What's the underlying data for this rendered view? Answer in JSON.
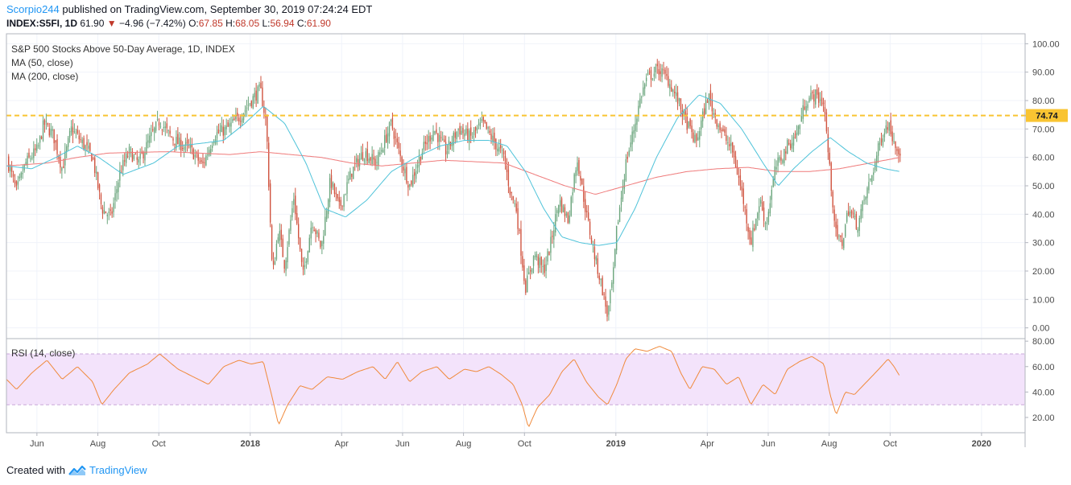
{
  "header": {
    "author": "Scorpio244",
    "published_text": " published on TradingView.com, September 30, 2019 07:24:24 EDT",
    "symbol": "INDEX:S5FI, 1D",
    "last": "61.90",
    "change": "−4.96 (−7.42%)",
    "o_label": "O:",
    "o_value": "67.85",
    "h_label": "H:",
    "h_value": "68.05",
    "l_label": "L:",
    "l_value": "56.94",
    "c_label": "C:",
    "c_value": "61.90"
  },
  "legend": {
    "title": "S&P 500 Stocks Above 50-Day Average, 1D, INDEX",
    "ma50": "MA (50, close)",
    "ma200": "MA (200, close)",
    "rsi": "RSI (14, close)"
  },
  "footer": {
    "created_with": "Created with",
    "brand": "TradingView"
  },
  "colors": {
    "up": "#6aa57c",
    "down": "#d0533f",
    "ma50": "#4fc3d9",
    "ma200": "#ef7a7a",
    "level": "#f9c432",
    "rsi": "#f08a3c",
    "rsi_band": "#f3e3fb"
  },
  "chart_data": {
    "type": "candlestick",
    "x_labels": [
      {
        "label": "Jun",
        "t": 0.17,
        "bold": false
      },
      {
        "label": "Aug",
        "t": 2.17,
        "bold": false
      },
      {
        "label": "Oct",
        "t": 4.17,
        "bold": false
      },
      {
        "label": "2018",
        "t": 7.17,
        "bold": true
      },
      {
        "label": "Apr",
        "t": 10.17,
        "bold": false
      },
      {
        "label": "Jun",
        "t": 12.17,
        "bold": false
      },
      {
        "label": "Aug",
        "t": 14.17,
        "bold": false
      },
      {
        "label": "Oct",
        "t": 16.17,
        "bold": false
      },
      {
        "label": "2019",
        "t": 19.17,
        "bold": true
      },
      {
        "label": "Apr",
        "t": 22.17,
        "bold": false
      },
      {
        "label": "Jun",
        "t": 24.17,
        "bold": false
      },
      {
        "label": "Aug",
        "t": 26.17,
        "bold": false
      },
      {
        "label": "Oct",
        "t": 28.17,
        "bold": false
      },
      {
        "label": "2020",
        "t": 31.17,
        "bold": true
      }
    ],
    "x_range": [
      -0.83,
      32.6
    ],
    "price": {
      "ylim": [
        -3.5,
        103.5
      ],
      "ticks": [
        "0.00",
        "10.00",
        "20.00",
        "30.00",
        "40.00",
        "50.00",
        "60.00",
        "70.00",
        "80.00",
        "90.00",
        "100.00"
      ],
      "level_value": 74.74,
      "level_label": "74.74",
      "close_anchors": [
        [
          -0.83,
          60
        ],
        [
          -0.5,
          48
        ],
        [
          -0.2,
          58
        ],
        [
          0.2,
          63
        ],
        [
          0.4,
          72
        ],
        [
          0.7,
          68
        ],
        [
          1.0,
          56
        ],
        [
          1.3,
          70
        ],
        [
          1.6,
          66
        ],
        [
          2.0,
          60
        ],
        [
          2.3,
          42
        ],
        [
          2.6,
          39
        ],
        [
          2.9,
          55
        ],
        [
          3.2,
          62
        ],
        [
          3.5,
          58
        ],
        [
          3.9,
          67
        ],
        [
          4.2,
          73
        ],
        [
          4.5,
          68
        ],
        [
          4.8,
          65
        ],
        [
          5.2,
          63
        ],
        [
          5.6,
          57
        ],
        [
          6.0,
          68
        ],
        [
          6.4,
          70
        ],
        [
          6.8,
          74
        ],
        [
          7.2,
          80
        ],
        [
          7.5,
          84
        ],
        [
          7.7,
          72
        ],
        [
          7.9,
          18
        ],
        [
          8.1,
          35
        ],
        [
          8.3,
          22
        ],
        [
          8.6,
          46
        ],
        [
          8.9,
          18
        ],
        [
          9.2,
          38
        ],
        [
          9.5,
          28
        ],
        [
          9.8,
          52
        ],
        [
          10.1,
          42
        ],
        [
          10.5,
          55
        ],
        [
          10.9,
          62
        ],
        [
          11.3,
          58
        ],
        [
          11.8,
          72
        ],
        [
          12.1,
          60
        ],
        [
          12.4,
          50
        ],
        [
          12.8,
          62
        ],
        [
          13.2,
          70
        ],
        [
          13.6,
          62
        ],
        [
          14.0,
          70
        ],
        [
          14.4,
          67
        ],
        [
          14.8,
          72
        ],
        [
          15.2,
          65
        ],
        [
          15.5,
          60
        ],
        [
          15.7,
          48
        ],
        [
          15.9,
          42
        ],
        [
          16.2,
          14
        ],
        [
          16.5,
          26
        ],
        [
          16.8,
          20
        ],
        [
          17.0,
          28
        ],
        [
          17.3,
          45
        ],
        [
          17.6,
          38
        ],
        [
          17.9,
          60
        ],
        [
          18.2,
          40
        ],
        [
          18.5,
          24
        ],
        [
          18.7,
          15
        ],
        [
          18.9,
          4
        ],
        [
          19.1,
          20
        ],
        [
          19.2,
          35
        ],
        [
          19.5,
          58
        ],
        [
          19.8,
          72
        ],
        [
          20.0,
          82
        ],
        [
          20.2,
          88
        ],
        [
          20.6,
          91
        ],
        [
          20.9,
          87
        ],
        [
          21.2,
          80
        ],
        [
          21.5,
          72
        ],
        [
          21.8,
          65
        ],
        [
          22.2,
          82
        ],
        [
          22.4,
          75
        ],
        [
          22.7,
          68
        ],
        [
          23.0,
          62
        ],
        [
          23.3,
          48
        ],
        [
          23.6,
          30
        ],
        [
          23.9,
          45
        ],
        [
          24.1,
          36
        ],
        [
          24.4,
          56
        ],
        [
          24.8,
          64
        ],
        [
          25.1,
          68
        ],
        [
          25.4,
          80
        ],
        [
          25.7,
          82
        ],
        [
          26.0,
          79
        ],
        [
          26.2,
          54
        ],
        [
          26.4,
          32
        ],
        [
          26.6,
          30
        ],
        [
          26.8,
          42
        ],
        [
          27.1,
          36
        ],
        [
          27.3,
          44
        ],
        [
          27.6,
          55
        ],
        [
          27.9,
          68
        ],
        [
          28.1,
          72
        ],
        [
          28.3,
          66
        ],
        [
          28.5,
          61.9
        ]
      ],
      "ma50_anchors": [
        [
          -0.83,
          57
        ],
        [
          0.0,
          56
        ],
        [
          0.8,
          60
        ],
        [
          1.5,
          64
        ],
        [
          2.2,
          60
        ],
        [
          3.0,
          54
        ],
        [
          4.0,
          58
        ],
        [
          4.8,
          64
        ],
        [
          5.6,
          65
        ],
        [
          6.3,
          66
        ],
        [
          7.0,
          72
        ],
        [
          7.6,
          78
        ],
        [
          8.3,
          72
        ],
        [
          9.0,
          58
        ],
        [
          9.6,
          42
        ],
        [
          10.3,
          39
        ],
        [
          11.0,
          45
        ],
        [
          11.8,
          55
        ],
        [
          12.6,
          60
        ],
        [
          13.4,
          64
        ],
        [
          14.2,
          66
        ],
        [
          15.0,
          66
        ],
        [
          15.6,
          64
        ],
        [
          16.2,
          55
        ],
        [
          16.8,
          42
        ],
        [
          17.4,
          32
        ],
        [
          18.0,
          30
        ],
        [
          18.6,
          29
        ],
        [
          19.2,
          30
        ],
        [
          19.8,
          42
        ],
        [
          20.5,
          60
        ],
        [
          21.2,
          74
        ],
        [
          21.9,
          82
        ],
        [
          22.6,
          79
        ],
        [
          23.3,
          70
        ],
        [
          24.0,
          58
        ],
        [
          24.5,
          50
        ],
        [
          25.0,
          56
        ],
        [
          25.6,
          62
        ],
        [
          26.2,
          67
        ],
        [
          26.8,
          62
        ],
        [
          27.4,
          58
        ],
        [
          28.0,
          56
        ],
        [
          28.5,
          55
        ]
      ],
      "ma200_anchors": [
        [
          -0.83,
          57
        ],
        [
          0.5,
          58
        ],
        [
          1.5,
          60
        ],
        [
          2.5,
          61.5
        ],
        [
          3.5,
          61.8
        ],
        [
          4.5,
          62
        ],
        [
          5.5,
          61.5
        ],
        [
          6.5,
          61
        ],
        [
          7.5,
          62
        ],
        [
          8.5,
          61
        ],
        [
          9.5,
          60
        ],
        [
          10.5,
          58
        ],
        [
          11.5,
          57
        ],
        [
          12.5,
          58
        ],
        [
          13.5,
          59
        ],
        [
          14.5,
          58.5
        ],
        [
          15.5,
          58
        ],
        [
          16.5,
          54
        ],
        [
          17.5,
          50
        ],
        [
          18.5,
          47
        ],
        [
          19.5,
          50
        ],
        [
          20.5,
          53
        ],
        [
          21.5,
          55
        ],
        [
          22.5,
          56
        ],
        [
          23.5,
          56.5
        ],
        [
          24.5,
          55
        ],
        [
          25.5,
          55
        ],
        [
          26.5,
          56
        ],
        [
          27.5,
          58
        ],
        [
          28.5,
          60
        ]
      ]
    },
    "rsi": {
      "ylim": [
        8,
        82
      ],
      "ticks": [
        "20.00",
        "40.00",
        "60.00",
        "80.00"
      ],
      "band": [
        30,
        70
      ],
      "anchors": [
        [
          -0.83,
          50
        ],
        [
          -0.5,
          42
        ],
        [
          0.0,
          55
        ],
        [
          0.5,
          65
        ],
        [
          1.0,
          50
        ],
        [
          1.5,
          60
        ],
        [
          2.0,
          48
        ],
        [
          2.3,
          30
        ],
        [
          2.7,
          42
        ],
        [
          3.2,
          55
        ],
        [
          3.8,
          62
        ],
        [
          4.2,
          70
        ],
        [
          4.8,
          58
        ],
        [
          5.3,
          52
        ],
        [
          5.8,
          46
        ],
        [
          6.3,
          60
        ],
        [
          6.8,
          65
        ],
        [
          7.2,
          62
        ],
        [
          7.6,
          64
        ],
        [
          7.9,
          35
        ],
        [
          8.1,
          14
        ],
        [
          8.4,
          30
        ],
        [
          8.8,
          45
        ],
        [
          9.2,
          42
        ],
        [
          9.7,
          52
        ],
        [
          10.2,
          50
        ],
        [
          10.7,
          56
        ],
        [
          11.2,
          60
        ],
        [
          11.6,
          50
        ],
        [
          12.0,
          64
        ],
        [
          12.4,
          48
        ],
        [
          12.8,
          56
        ],
        [
          13.3,
          60
        ],
        [
          13.7,
          50
        ],
        [
          14.2,
          58
        ],
        [
          14.6,
          56
        ],
        [
          15.0,
          60
        ],
        [
          15.4,
          54
        ],
        [
          15.8,
          46
        ],
        [
          16.1,
          30
        ],
        [
          16.3,
          12
        ],
        [
          16.6,
          28
        ],
        [
          17.0,
          38
        ],
        [
          17.4,
          56
        ],
        [
          17.8,
          66
        ],
        [
          18.2,
          48
        ],
        [
          18.6,
          36
        ],
        [
          18.9,
          30
        ],
        [
          19.2,
          46
        ],
        [
          19.5,
          66
        ],
        [
          19.8,
          74
        ],
        [
          20.2,
          72
        ],
        [
          20.6,
          76
        ],
        [
          21.0,
          72
        ],
        [
          21.3,
          55
        ],
        [
          21.6,
          42
        ],
        [
          22.0,
          60
        ],
        [
          22.4,
          58
        ],
        [
          22.8,
          46
        ],
        [
          23.2,
          52
        ],
        [
          23.6,
          30
        ],
        [
          24.0,
          46
        ],
        [
          24.4,
          38
        ],
        [
          24.8,
          58
        ],
        [
          25.2,
          64
        ],
        [
          25.6,
          68
        ],
        [
          26.0,
          62
        ],
        [
          26.2,
          38
        ],
        [
          26.4,
          22
        ],
        [
          26.7,
          40
        ],
        [
          27.0,
          38
        ],
        [
          27.4,
          48
        ],
        [
          27.8,
          58
        ],
        [
          28.1,
          66
        ],
        [
          28.3,
          60
        ],
        [
          28.5,
          52
        ]
      ]
    }
  }
}
